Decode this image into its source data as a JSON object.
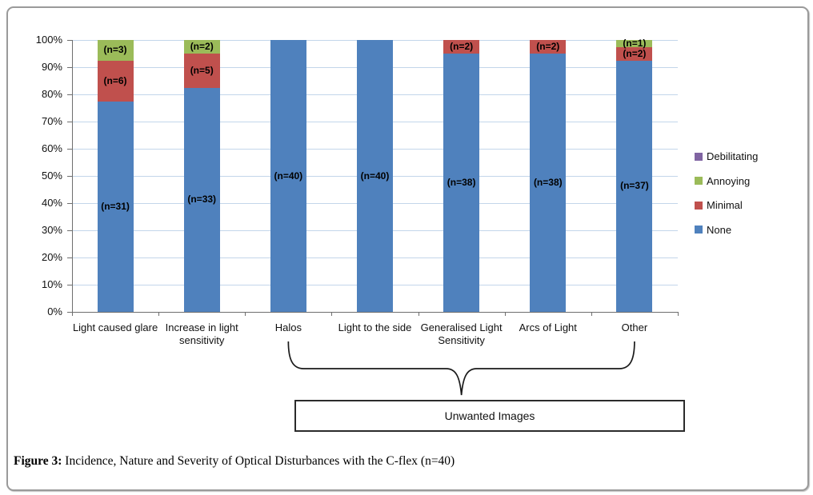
{
  "figure": {
    "caption_prefix": "Figure 3:",
    "caption_text": " Incidence, Nature and Severity of Optical Disturbances with the C-flex (n=40)"
  },
  "chart_data": {
    "type": "bar",
    "stacked": true,
    "percent_axis": true,
    "total_n": 40,
    "title": "",
    "xlabel": "",
    "ylabel": "",
    "ylim": [
      0,
      100
    ],
    "grid": true,
    "legend_position": "right",
    "categories": [
      "Light caused glare",
      "Increase in light sensitivity",
      "Halos",
      "Light to the side",
      "Generalised Light Sensitivity",
      "Arcs of Light",
      "Other"
    ],
    "series": [
      {
        "name": "None",
        "color": "#4F81BD",
        "counts": [
          31,
          33,
          40,
          40,
          38,
          38,
          37
        ],
        "values_pct": [
          77.5,
          82.5,
          100,
          100,
          95,
          95,
          92.5
        ]
      },
      {
        "name": "Minimal",
        "color": "#C0504D",
        "counts": [
          6,
          5,
          0,
          0,
          2,
          2,
          2
        ],
        "values_pct": [
          15,
          12.5,
          0,
          0,
          5,
          5,
          5
        ]
      },
      {
        "name": "Annoying",
        "color": "#9BBB59",
        "counts": [
          3,
          2,
          0,
          0,
          0,
          0,
          1
        ],
        "values_pct": [
          7.5,
          5,
          0,
          0,
          0,
          0,
          2.5
        ]
      },
      {
        "name": "Debilitating",
        "color": "#8064A2",
        "counts": [
          0,
          0,
          0,
          0,
          0,
          0,
          0
        ],
        "values_pct": [
          0,
          0,
          0,
          0,
          0,
          0,
          0
        ]
      }
    ],
    "bar_label_format": "(n={count})",
    "y_ticks": [
      "0%",
      "10%",
      "20%",
      "30%",
      "40%",
      "50%",
      "60%",
      "70%",
      "80%",
      "90%",
      "100%"
    ],
    "legend_order": [
      "Debilitating",
      "Annoying",
      "Minimal",
      "None"
    ],
    "annotation": {
      "brace_from_category": "Halos",
      "brace_to_category": "Other",
      "box_label": "Unwanted Images"
    }
  },
  "colors": {
    "gridline": "#c3d6ea",
    "axis": "#6e6e6e",
    "card_border": "#9a9a9a",
    "bar_label_text": "#000000",
    "brace_stroke": "#1a1a1a"
  }
}
